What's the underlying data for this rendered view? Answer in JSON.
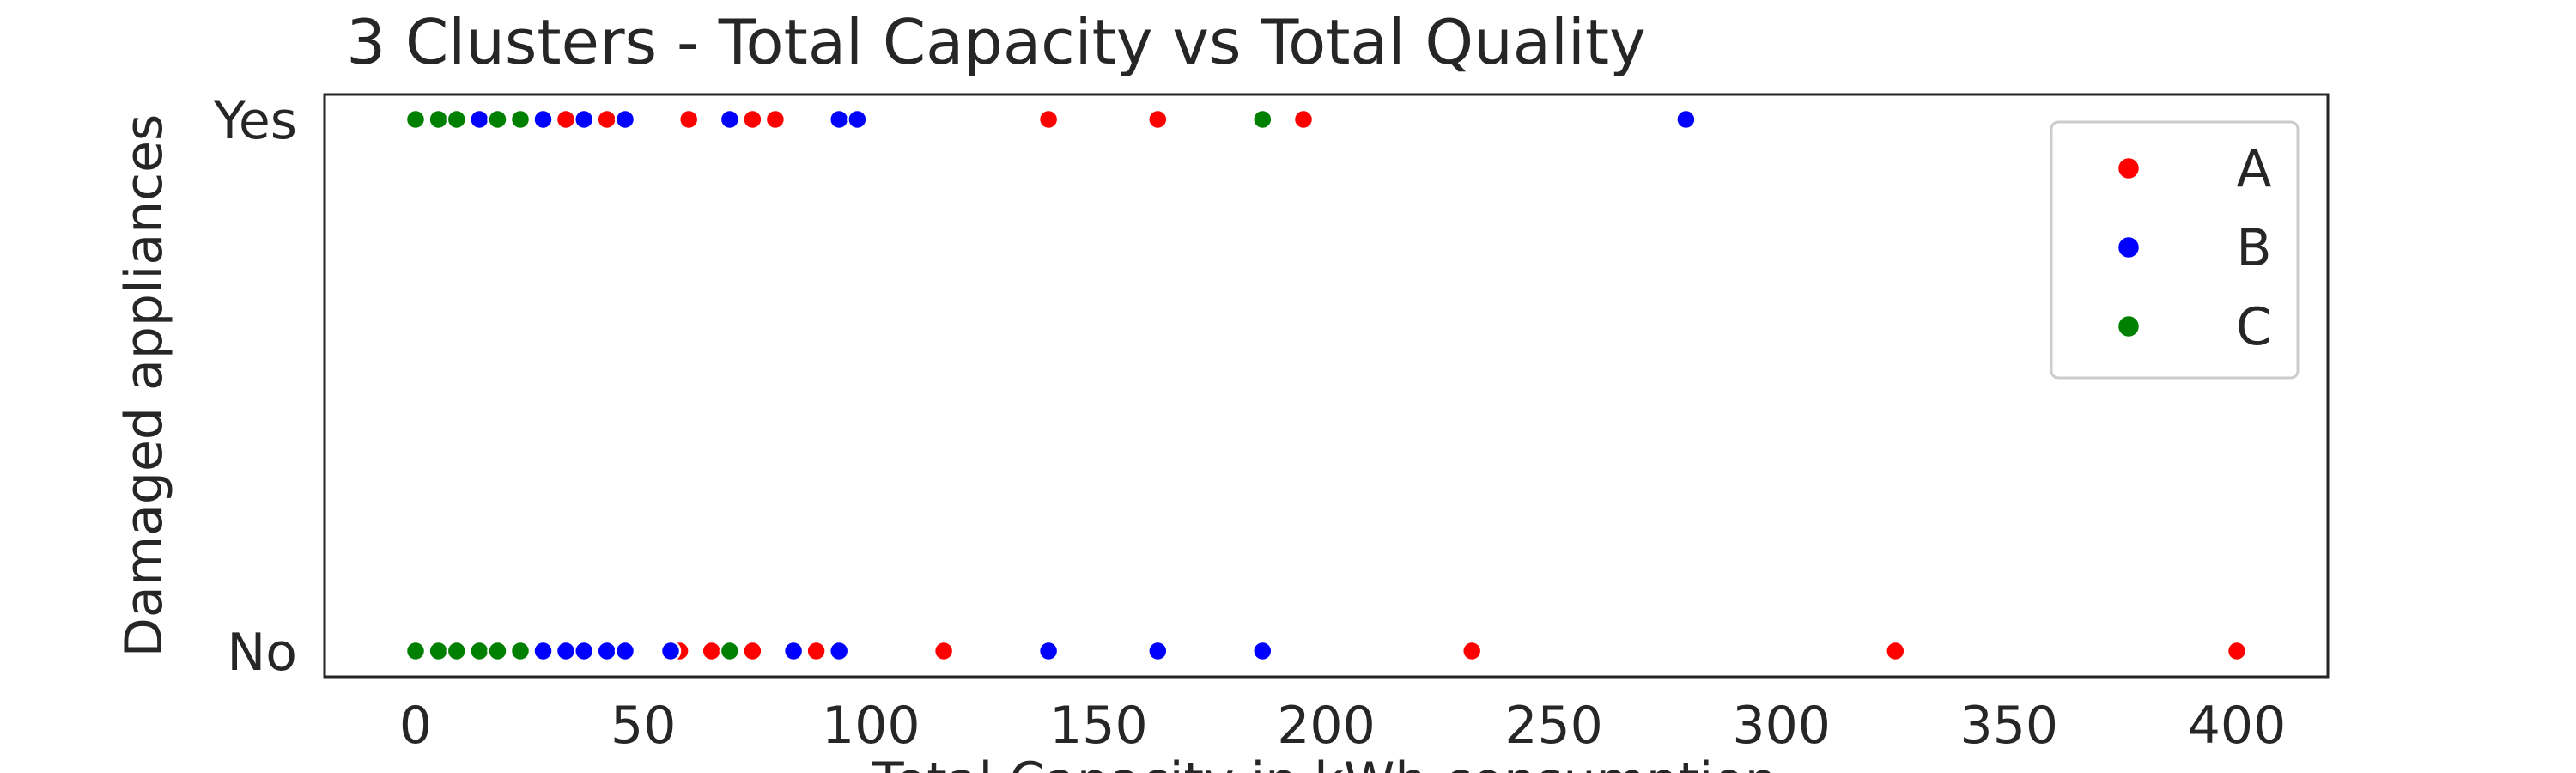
{
  "chart_data": {
    "type": "scatter",
    "title": "3 Clusters - Total Capacity  vs Total Quality",
    "xlabel": "Total Capacity in kWh consumption",
    "ylabel": "Damaged appliances",
    "xlim": [
      -20,
      420
    ],
    "x_ticks": [
      0,
      50,
      100,
      150,
      200,
      250,
      300,
      350,
      400
    ],
    "y_categories": [
      "No",
      "Yes"
    ],
    "grid": false,
    "legend_position": "top-right",
    "series": [
      {
        "name": "A",
        "color": "#ff0000",
        "points": [
          {
            "x": 33,
            "y": "Yes"
          },
          {
            "x": 42,
            "y": "Yes"
          },
          {
            "x": 60,
            "y": "Yes"
          },
          {
            "x": 74,
            "y": "Yes"
          },
          {
            "x": 79,
            "y": "Yes"
          },
          {
            "x": 139,
            "y": "Yes"
          },
          {
            "x": 163,
            "y": "Yes"
          },
          {
            "x": 195,
            "y": "Yes"
          },
          {
            "x": 58,
            "y": "No"
          },
          {
            "x": 65,
            "y": "No"
          },
          {
            "x": 74,
            "y": "No"
          },
          {
            "x": 88,
            "y": "No"
          },
          {
            "x": 116,
            "y": "No"
          },
          {
            "x": 232,
            "y": "No"
          },
          {
            "x": 325,
            "y": "No"
          },
          {
            "x": 400,
            "y": "No"
          }
        ]
      },
      {
        "name": "B",
        "color": "#0000ff",
        "points": [
          {
            "x": 14,
            "y": "Yes"
          },
          {
            "x": 28,
            "y": "Yes"
          },
          {
            "x": 37,
            "y": "Yes"
          },
          {
            "x": 46,
            "y": "Yes"
          },
          {
            "x": 69,
            "y": "Yes"
          },
          {
            "x": 93,
            "y": "Yes"
          },
          {
            "x": 97,
            "y": "Yes"
          },
          {
            "x": 279,
            "y": "Yes"
          },
          {
            "x": 28,
            "y": "No"
          },
          {
            "x": 33,
            "y": "No"
          },
          {
            "x": 37,
            "y": "No"
          },
          {
            "x": 42,
            "y": "No"
          },
          {
            "x": 46,
            "y": "No"
          },
          {
            "x": 56,
            "y": "No"
          },
          {
            "x": 83,
            "y": "No"
          },
          {
            "x": 93,
            "y": "No"
          },
          {
            "x": 139,
            "y": "No"
          },
          {
            "x": 163,
            "y": "No"
          },
          {
            "x": 186,
            "y": "No"
          }
        ]
      },
      {
        "name": "C",
        "color": "#008000",
        "points": [
          {
            "x": 0,
            "y": "Yes"
          },
          {
            "x": 5,
            "y": "Yes"
          },
          {
            "x": 9,
            "y": "Yes"
          },
          {
            "x": 18,
            "y": "Yes"
          },
          {
            "x": 23,
            "y": "Yes"
          },
          {
            "x": 186,
            "y": "Yes"
          },
          {
            "x": 0,
            "y": "No"
          },
          {
            "x": 5,
            "y": "No"
          },
          {
            "x": 9,
            "y": "No"
          },
          {
            "x": 14,
            "y": "No"
          },
          {
            "x": 18,
            "y": "No"
          },
          {
            "x": 23,
            "y": "No"
          },
          {
            "x": 69,
            "y": "No"
          }
        ]
      }
    ]
  }
}
